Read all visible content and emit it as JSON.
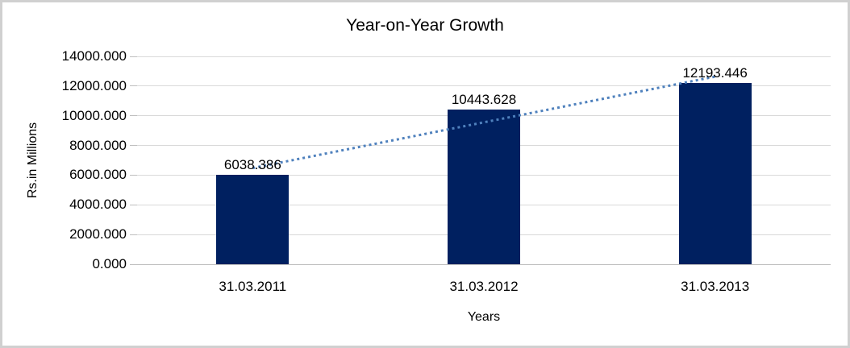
{
  "chart_data": {
    "type": "bar",
    "title": "Year-on-Year Growth",
    "xlabel": "Years",
    "ylabel": "Rs.in Millions",
    "categories": [
      "31.03.2011",
      "31.03.2012",
      "31.03.2013"
    ],
    "values": [
      6038.386,
      10443.628,
      12193.446
    ],
    "data_labels": [
      "6038.386",
      "10443.628",
      "12193.446"
    ],
    "ylim": [
      0,
      14000
    ],
    "ytick_interval": 2000,
    "ytick_labels": [
      "0.000",
      "2000.000",
      "4000.000",
      "6000.000",
      "8000.000",
      "10000.000",
      "12000.000",
      "14000.000"
    ],
    "grid": true,
    "legend_position": "none",
    "trendline": {
      "type": "linear",
      "style": "dotted",
      "color": "#4f81bd"
    },
    "colors": {
      "bar": "#002060",
      "gridline": "#d9d9d9",
      "axis_line": "#bfbfbf",
      "text": "#000000",
      "frame_border": "#d0d0d0",
      "background": "#ffffff"
    }
  }
}
